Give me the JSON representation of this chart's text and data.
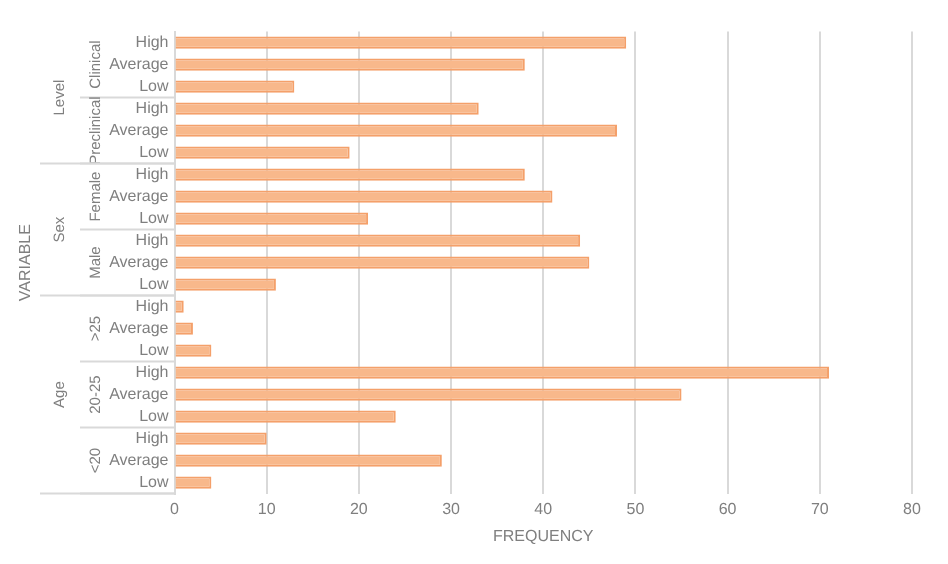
{
  "chart_data": {
    "type": "bar",
    "orientation": "horizontal",
    "xlabel": "FREQUENCY",
    "ylabel": "VARIABLE",
    "categories": [
      "High",
      "Average",
      "Low",
      "High",
      "Average",
      "Low",
      "High",
      "Average",
      "Low",
      "High",
      "Average",
      "Low",
      "High",
      "Average",
      "Low",
      "High",
      "Average",
      "Low",
      "High",
      "Average",
      "Low"
    ],
    "series": [
      {
        "color": "#f8b88b",
        "values": [
          49,
          38,
          13,
          33,
          48,
          19,
          38,
          41,
          21,
          44,
          45,
          11,
          1,
          2,
          4,
          71,
          55,
          24,
          10,
          29,
          4
        ]
      }
    ],
    "xlim": [
      0,
      80
    ],
    "xticks": [
      0,
      10,
      20,
      30,
      40,
      50,
      60,
      70,
      80
    ],
    "grid": "x",
    "legend": false,
    "annotations": [
      "Clinical",
      "Preclinical",
      "Female",
      "Male",
      ">25",
      "20-25",
      "<20",
      "Level",
      "Sex",
      "Age"
    ]
  }
}
